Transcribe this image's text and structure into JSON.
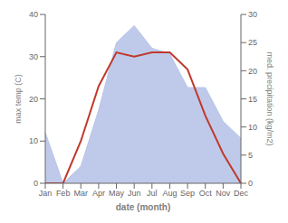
{
  "chart_data": {
    "type": "line",
    "categories": [
      "Jan",
      "Feb",
      "Mar",
      "Apr",
      "May",
      "Jun",
      "Jul",
      "Aug",
      "Sep",
      "Oct",
      "Nov",
      "Dec"
    ],
    "series": [
      {
        "type": "area",
        "axis": "y2",
        "color": "#b8c4e8",
        "values": [
          9,
          0,
          3,
          13,
          25,
          28,
          24,
          23,
          17,
          17,
          11,
          8
        ]
      },
      {
        "type": "line",
        "color": "#c0392b",
        "values": [
          0,
          0,
          10,
          23,
          31,
          30,
          31,
          31,
          27,
          16,
          7,
          0
        ]
      }
    ],
    "xlabel": "date (month)",
    "ylabel": "max temp (C)",
    "y2label": "med. precipitation (kg/m2)",
    "ylim": [
      0,
      40
    ],
    "yticks": [
      0,
      10,
      20,
      30,
      40
    ],
    "y2lim": [
      0,
      30
    ],
    "y2ticks": [
      0,
      5,
      10,
      15,
      20,
      25,
      30
    ],
    "grid": false
  }
}
